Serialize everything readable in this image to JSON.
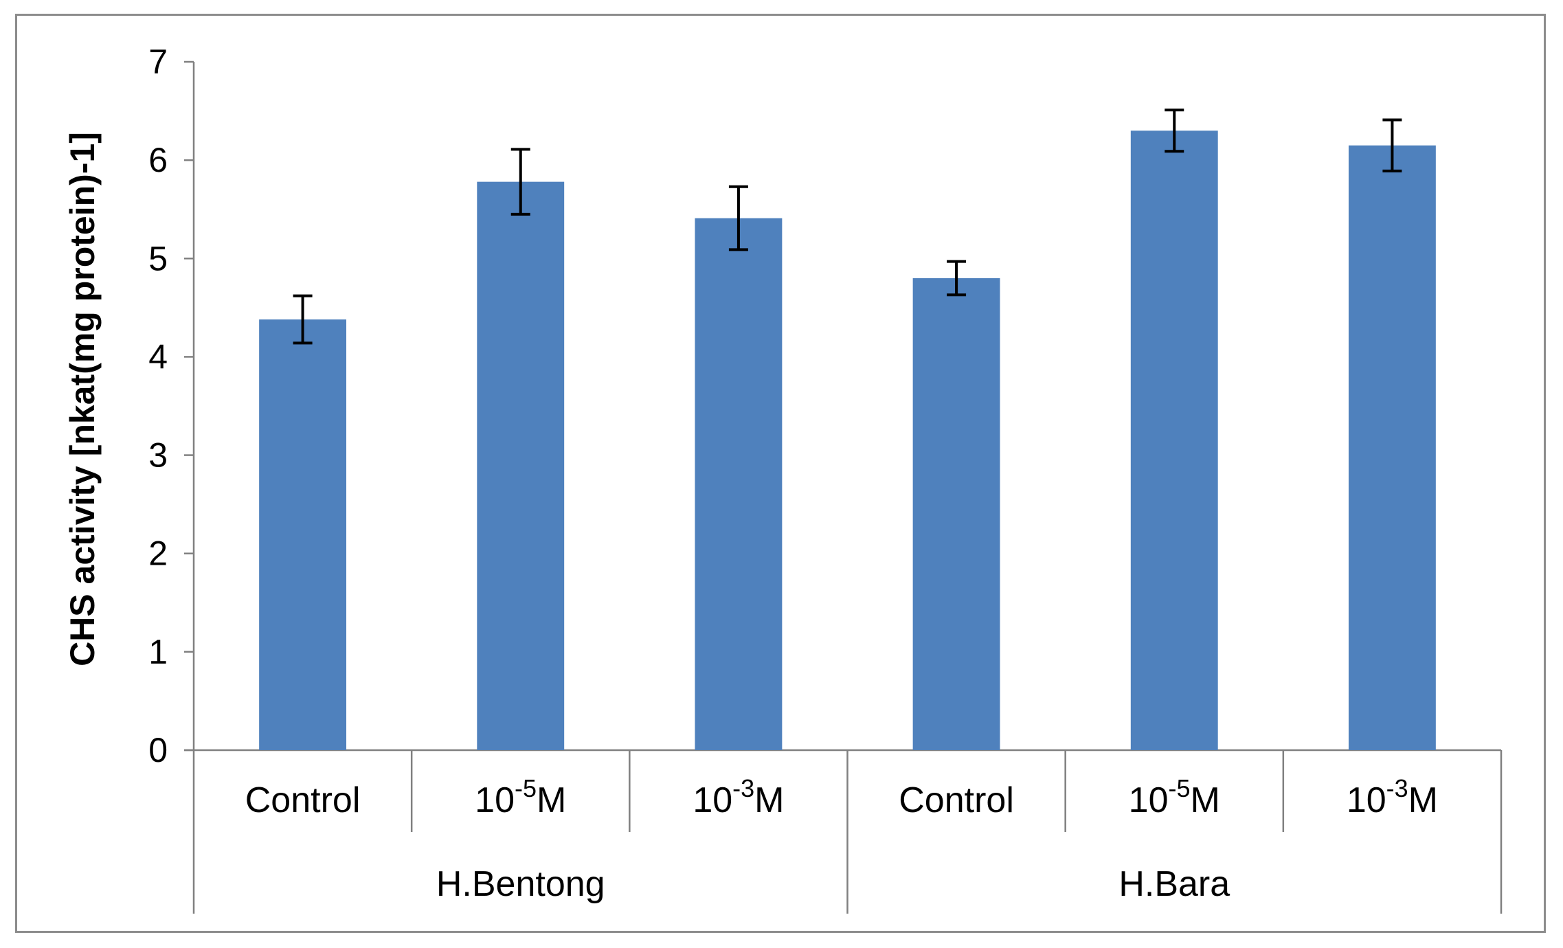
{
  "chart_data": {
    "type": "bar",
    "title": "",
    "ylabel": "CHS activity [nkat(mg protein)-1]",
    "xlabel": "",
    "ylim": [
      0,
      7
    ],
    "yticks": [
      0,
      1,
      2,
      3,
      4,
      5,
      6,
      7
    ],
    "grid": false,
    "bar_color": "#4f81bd",
    "groups": [
      {
        "name": "H.Bentong",
        "categories": [
          {
            "base": "Control",
            "exp": "",
            "unit": ""
          },
          {
            "base": "10",
            "exp": "-5",
            "unit": "M"
          },
          {
            "base": "10",
            "exp": "-3",
            "unit": "M"
          }
        ],
        "values": [
          4.38,
          5.78,
          5.41
        ],
        "errors": [
          0.24,
          0.33,
          0.32
        ]
      },
      {
        "name": "H.Bara",
        "categories": [
          {
            "base": "Control",
            "exp": "",
            "unit": ""
          },
          {
            "base": "10",
            "exp": "-5",
            "unit": "M"
          },
          {
            "base": "10",
            "exp": "-3",
            "unit": "M"
          }
        ],
        "values": [
          4.8,
          6.3,
          6.15
        ],
        "errors": [
          0.17,
          0.21,
          0.26
        ]
      }
    ]
  }
}
